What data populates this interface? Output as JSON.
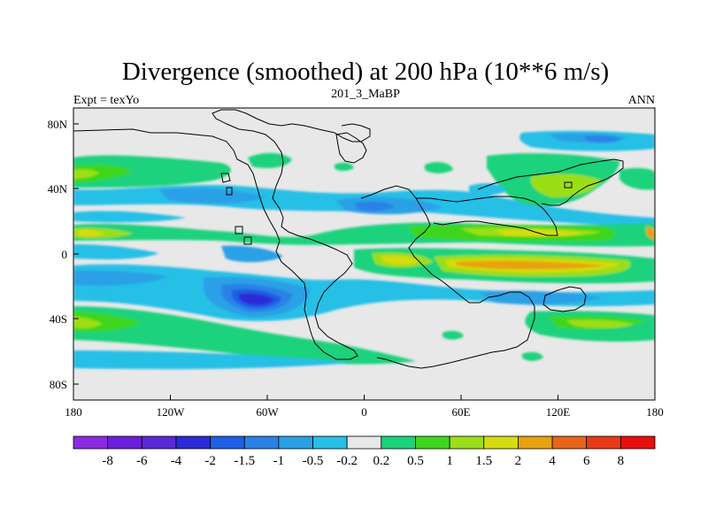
{
  "header": {
    "title": "Divergence (smoothed) at 200 hPa (10**6 m/s)",
    "left_label": "Expt = texYo",
    "center_label": "201_3_MaBP",
    "right_label": "ANN"
  },
  "map": {
    "projection": "cylindrical-equidistant",
    "lon_range": [
      -180,
      180
    ],
    "lat_range": [
      -90,
      90
    ],
    "x_ticks": [
      "180",
      "120W",
      "60W",
      "0",
      "60E",
      "120E",
      "180"
    ],
    "y_ticks": [
      "80N",
      "40N",
      "0",
      "40S",
      "80S"
    ]
  },
  "colorbar": {
    "labels": [
      "-8",
      "-6",
      "-4",
      "-2",
      "-1.5",
      "-1",
      "-0.5",
      "-0.2",
      "0.2",
      "0.5",
      "1",
      "1.5",
      "2",
      "4",
      "6",
      "8"
    ],
    "colors": [
      "#8a2be2",
      "#6a1fdc",
      "#5a28d8",
      "#2a2ad6",
      "#1f5ee6",
      "#2a82e6",
      "#2aa0e6",
      "#28bfe6",
      "#e8e8e8",
      "#1cd27c",
      "#3ed61e",
      "#9cde18",
      "#d6dc10",
      "#e8a210",
      "#e8641a",
      "#e83a16",
      "#e80e0e"
    ],
    "colors_note_removed": true
  }
}
